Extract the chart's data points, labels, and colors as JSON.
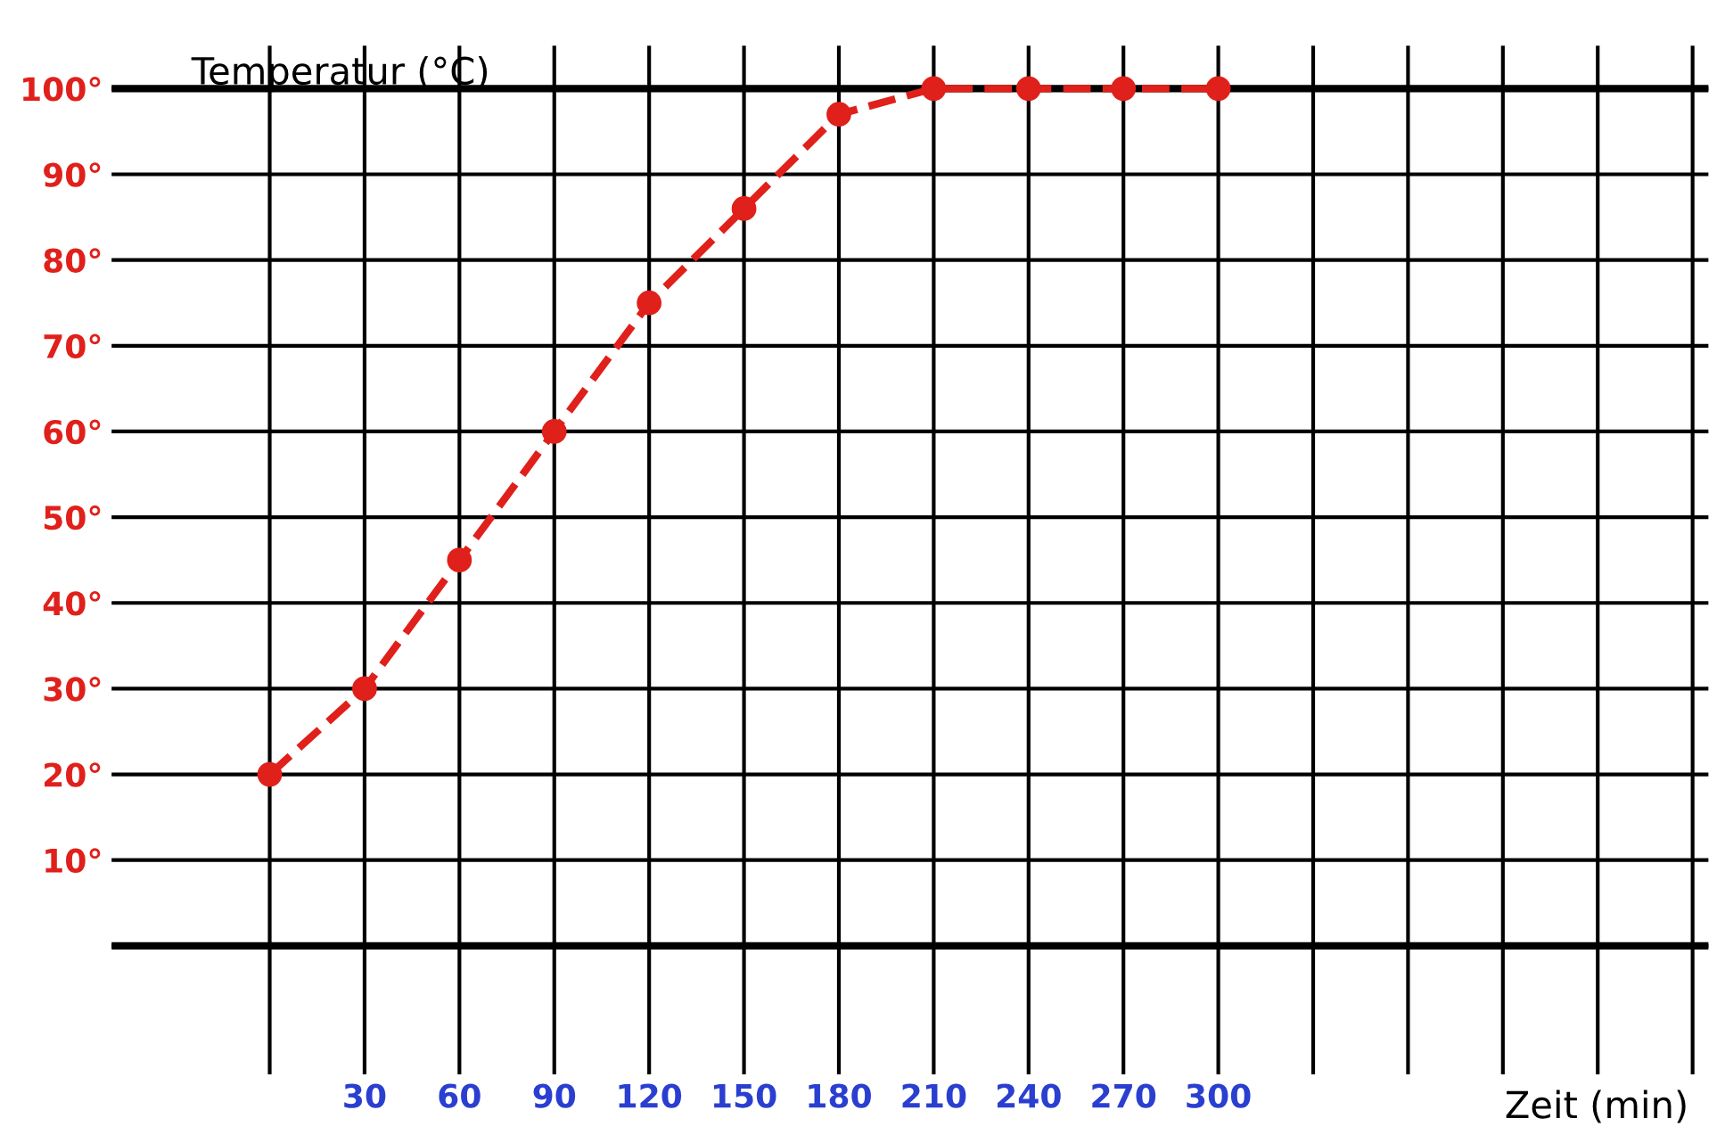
{
  "chart_data": {
    "type": "line",
    "xlabel": "Zeit (min)",
    "ylabel": "Temperatur (°C)",
    "x": [
      0,
      30,
      60,
      90,
      120,
      150,
      180,
      210,
      240,
      270,
      300
    ],
    "series": [
      {
        "color": "#e0201b",
        "values": [
          20,
          30,
          45,
          60,
          75,
          86,
          97,
          100,
          100,
          100,
          100
        ]
      }
    ],
    "xlim": [
      -50,
      455
    ],
    "ylim": [
      -15,
      105
    ],
    "xticks": [
      {
        "value": 0,
        "label": null
      },
      30,
      60,
      90,
      120,
      150,
      180,
      210,
      240,
      270,
      300,
      {
        "value": 330,
        "label": null
      },
      {
        "value": 360,
        "label": null
      },
      {
        "value": 390,
        "label": null
      },
      {
        "value": 420,
        "label": null
      },
      {
        "value": 450,
        "label": null
      }
    ],
    "yticks": [
      {
        "value": 0,
        "label": null
      },
      {
        "value": 10,
        "label": "10°"
      },
      {
        "value": 20,
        "label": "20°"
      },
      {
        "value": 30,
        "label": "30°"
      },
      {
        "value": 40,
        "label": "40°"
      },
      {
        "value": 50,
        "label": "50°"
      },
      {
        "value": 60,
        "label": "60°"
      },
      {
        "value": 70,
        "label": "70°"
      },
      {
        "value": 80,
        "label": "80°"
      },
      {
        "value": 90,
        "label": "90°"
      },
      {
        "value": 100,
        "label": "100°"
      }
    ],
    "grid": true,
    "marker": "circle",
    "line_style": "dashed",
    "legend": false
  }
}
